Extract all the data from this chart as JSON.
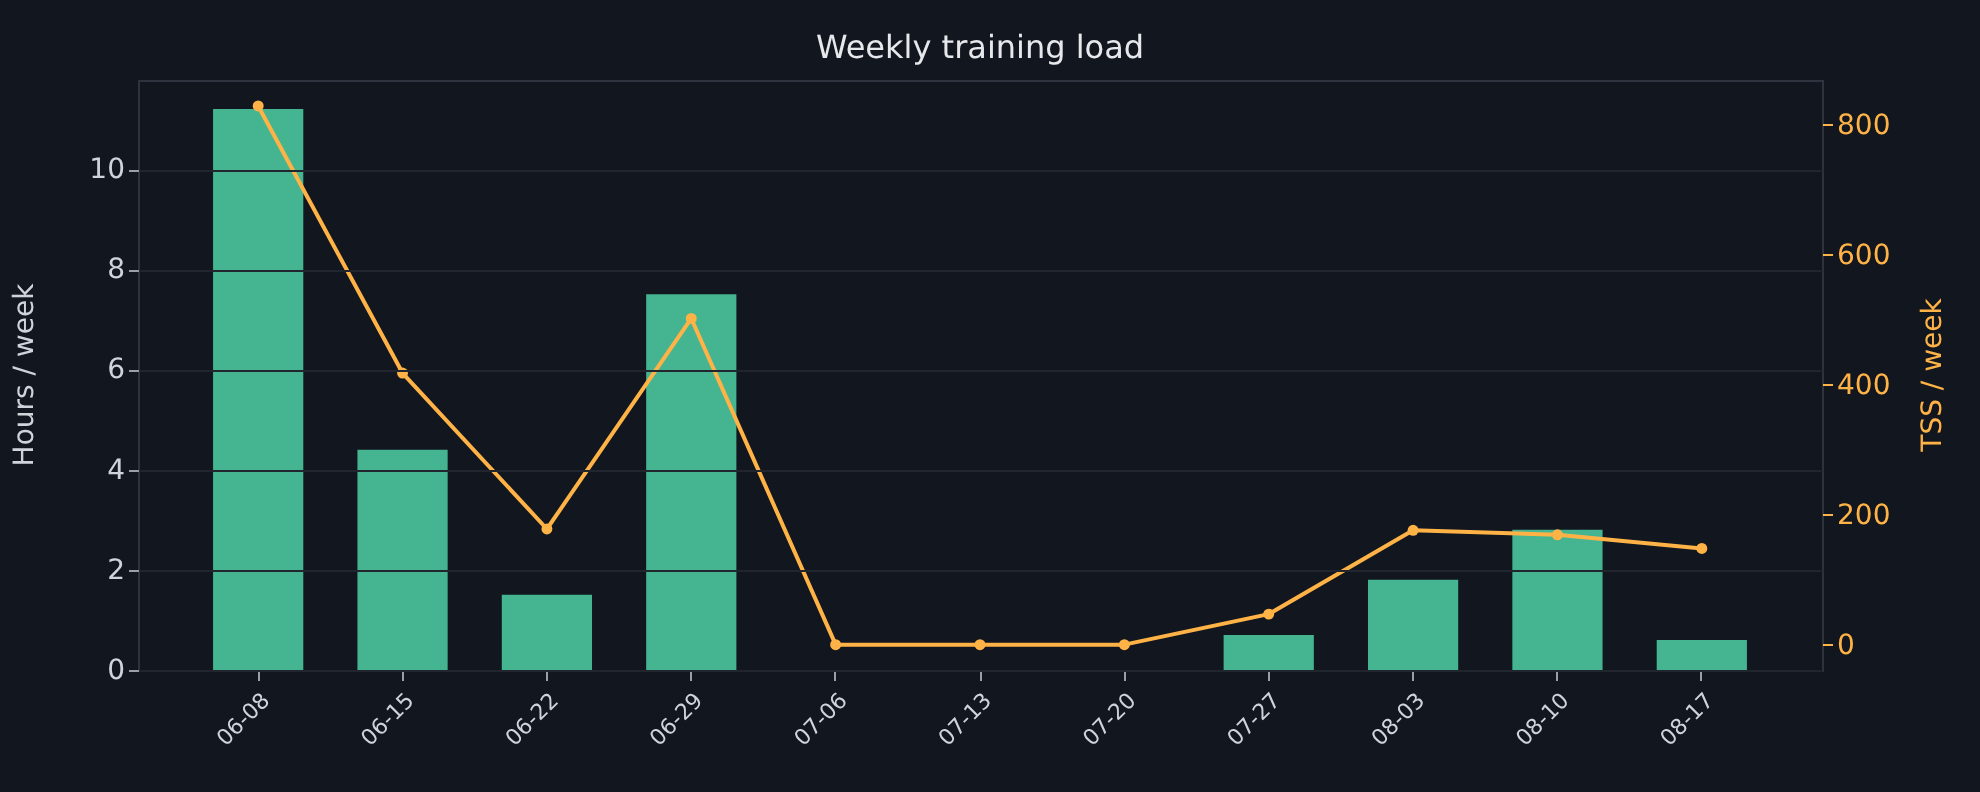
{
  "chart_data": {
    "type": "bar",
    "title": "Weekly training load",
    "ylabel": "Hours / week",
    "y2label": "TSS / week",
    "categories": [
      "06-08",
      "06-15",
      "06-22",
      "06-29",
      "07-06",
      "07-13",
      "07-20",
      "07-27",
      "08-03",
      "08-10",
      "08-17"
    ],
    "series": [
      {
        "color": "#44b491",
        "values": [
          11.2,
          4.4,
          1.5,
          7.5,
          0,
          0,
          0,
          0.7,
          1.8,
          2.8,
          0.6
        ]
      },
      {
        "type": "line",
        "axis": "y2",
        "color": "#ffb347",
        "values": [
          829,
          418,
          178,
          502,
          0,
          0,
          0,
          47,
          176,
          169,
          148
        ]
      }
    ],
    "ylim": [
      0,
      11.78
    ],
    "yticks": [
      0,
      2,
      4,
      6,
      8,
      10
    ],
    "y2lim": [
      -39,
      869
    ],
    "y2ticks": [
      0,
      200,
      400,
      600,
      800
    ],
    "grid": "y",
    "marker": "circle"
  }
}
